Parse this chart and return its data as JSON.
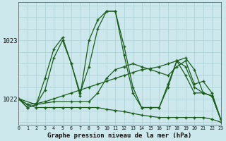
{
  "title": "Graphe pression niveau de la mer (hPa)",
  "bg_color": "#cce8ec",
  "grid_color": "#b0d4d8",
  "line_color": "#1a5c1a",
  "xlim": [
    0,
    23
  ],
  "ylim": [
    1021.55,
    1023.65
  ],
  "yticks": [
    1022,
    1023
  ],
  "xticks": [
    0,
    1,
    2,
    3,
    4,
    5,
    6,
    7,
    8,
    9,
    10,
    11,
    12,
    13,
    14,
    15,
    16,
    17,
    18,
    19,
    20,
    21,
    22,
    23
  ],
  "series": [
    {
      "x": [
        0,
        1,
        2,
        3,
        4,
        5,
        6,
        7,
        8,
        9,
        10,
        11,
        12,
        13,
        14,
        15,
        16,
        17,
        18,
        19,
        20,
        21,
        22,
        23
      ],
      "y": [
        1022.0,
        1021.85,
        1021.9,
        1022.35,
        1022.85,
        1023.05,
        1022.6,
        1022.1,
        1022.55,
        1023.2,
        1023.5,
        1023.5,
        1022.9,
        1022.2,
        1021.85,
        1021.85,
        1021.85,
        1022.25,
        1022.65,
        1022.55,
        1022.2,
        1022.1,
        1022.05,
        1021.65
      ]
    },
    {
      "x": [
        0,
        1,
        2,
        3,
        4,
        5,
        6,
        7,
        8,
        9,
        10,
        11,
        12,
        13,
        14,
        15,
        16,
        17,
        18,
        19,
        20,
        21,
        22,
        23
      ],
      "y": [
        1022.0,
        1021.85,
        1021.9,
        1022.15,
        1022.7,
        1023.0,
        1022.6,
        1022.05,
        1023.0,
        1023.35,
        1023.5,
        1023.5,
        1022.75,
        1022.1,
        1021.85,
        1021.85,
        1021.85,
        1022.2,
        1022.65,
        1022.4,
        1022.1,
        1022.1,
        1022.05,
        1021.65
      ]
    },
    {
      "x": [
        0,
        2,
        4,
        6,
        7,
        8,
        9,
        10,
        11,
        12,
        13,
        14,
        15,
        16,
        17,
        18,
        19,
        20,
        21,
        22,
        23
      ],
      "y": [
        1022.0,
        1021.9,
        1021.95,
        1021.95,
        1021.95,
        1021.95,
        1022.1,
        1022.35,
        1022.5,
        1022.55,
        1022.6,
        1022.55,
        1022.5,
        1022.45,
        1022.4,
        1022.55,
        1022.65,
        1022.25,
        1022.3,
        1022.1,
        1021.65
      ]
    },
    {
      "x": [
        0,
        1,
        2,
        3,
        4,
        5,
        6,
        7,
        8,
        9,
        10,
        11,
        12,
        13,
        14,
        15,
        16,
        17,
        18,
        19,
        20,
        21,
        22,
        23
      ],
      "y": [
        1022.0,
        1021.9,
        1021.85,
        1021.85,
        1021.85,
        1021.85,
        1021.85,
        1021.85,
        1021.85,
        1021.85,
        1021.82,
        1021.8,
        1021.78,
        1021.75,
        1021.72,
        1021.7,
        1021.68,
        1021.68,
        1021.68,
        1021.68,
        1021.68,
        1021.68,
        1021.65,
        1021.6
      ]
    },
    {
      "x": [
        0,
        1,
        2,
        3,
        4,
        5,
        6,
        7,
        8,
        9,
        10,
        11,
        12,
        13,
        14,
        15,
        16,
        17,
        18,
        19,
        20,
        21,
        22,
        23
      ],
      "y": [
        1022.0,
        1021.9,
        1021.92,
        1021.95,
        1022.0,
        1022.05,
        1022.1,
        1022.15,
        1022.2,
        1022.25,
        1022.3,
        1022.35,
        1022.4,
        1022.45,
        1022.5,
        1022.52,
        1022.55,
        1022.6,
        1022.65,
        1022.7,
        1022.5,
        1022.1,
        1022.05,
        1021.65
      ]
    }
  ]
}
